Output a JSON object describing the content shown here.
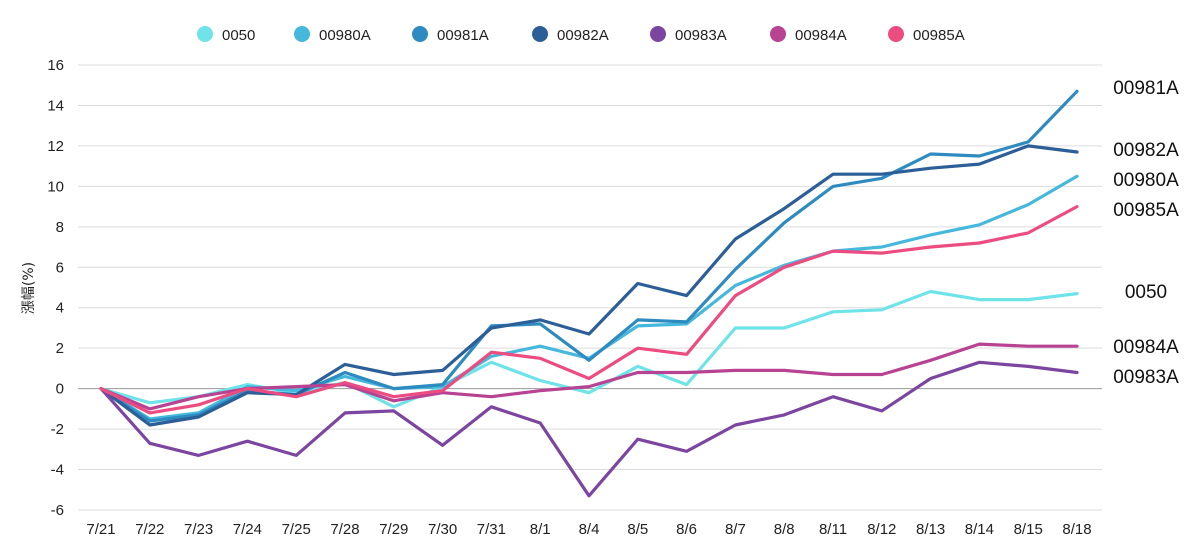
{
  "chart_data": {
    "type": "line",
    "title": "",
    "xlabel": "",
    "ylabel": "漲幅(%)",
    "ylim": [
      -6,
      16
    ],
    "yticks": [
      -6,
      -4,
      -2,
      0,
      2,
      4,
      6,
      8,
      10,
      12,
      14,
      16
    ],
    "grid": true,
    "legend_position": "top",
    "categories": [
      "7/21",
      "7/22",
      "7/23",
      "7/24",
      "7/25",
      "7/28",
      "7/29",
      "7/30",
      "7/31",
      "8/1",
      "8/4",
      "8/5",
      "8/6",
      "8/7",
      "8/8",
      "8/11",
      "8/12",
      "8/13",
      "8/14",
      "8/15",
      "8/18"
    ],
    "series": [
      {
        "name": "0050",
        "color": "#6ee3e8",
        "end_label": "0050",
        "values": [
          0,
          -0.7,
          -0.4,
          0.2,
          -0.2,
          0.3,
          -0.9,
          0.1,
          1.3,
          0.4,
          -0.2,
          1.1,
          0.2,
          3.0,
          3.0,
          3.8,
          3.9,
          4.8,
          4.4,
          4.4,
          4.7
        ]
      },
      {
        "name": "00980A",
        "color": "#45b8dc",
        "end_label": "00980A",
        "values": [
          0,
          -1.5,
          -1.2,
          0.1,
          -0.1,
          0.6,
          0.0,
          0.1,
          1.6,
          2.1,
          1.5,
          3.1,
          3.2,
          5.1,
          6.1,
          6.8,
          7.0,
          7.6,
          8.1,
          9.1,
          10.5
        ]
      },
      {
        "name": "00981A",
        "color": "#2e8bc0",
        "end_label": "00981A",
        "values": [
          0,
          -1.6,
          -1.3,
          -0.1,
          -0.3,
          0.8,
          0.0,
          0.2,
          3.1,
          3.2,
          1.4,
          3.4,
          3.3,
          5.9,
          8.2,
          10.0,
          10.4,
          11.6,
          11.5,
          12.2,
          14.7
        ]
      },
      {
        "name": "00982A",
        "color": "#2c5e98",
        "end_label": "00982A",
        "values": [
          0,
          -1.8,
          -1.4,
          -0.2,
          -0.3,
          1.2,
          0.7,
          0.9,
          3.0,
          3.4,
          2.7,
          5.2,
          4.6,
          7.4,
          8.9,
          10.6,
          10.6,
          10.9,
          11.1,
          12.0,
          11.7
        ]
      },
      {
        "name": "00983A",
        "color": "#7b45a0",
        "end_label": "00983A",
        "values": [
          0,
          -2.7,
          -3.3,
          -2.6,
          -3.3,
          -1.2,
          -1.1,
          -2.8,
          -0.9,
          -1.7,
          -5.3,
          -2.5,
          -3.1,
          -1.8,
          -1.3,
          -0.4,
          -1.1,
          0.5,
          1.3,
          1.1,
          0.8
        ]
      },
      {
        "name": "00984A",
        "color": "#b84393",
        "end_label": "00984A",
        "values": [
          0,
          -1.0,
          -0.4,
          0.0,
          0.1,
          0.2,
          -0.6,
          -0.2,
          -0.4,
          -0.1,
          0.1,
          0.8,
          0.8,
          0.9,
          0.9,
          0.7,
          0.7,
          1.4,
          2.2,
          2.1,
          2.1
        ]
      },
      {
        "name": "00985A",
        "color": "#ec4c80",
        "end_label": "00985A",
        "values": [
          0,
          -1.2,
          -0.8,
          0.0,
          -0.4,
          0.3,
          -0.4,
          -0.1,
          1.8,
          1.5,
          0.5,
          2.0,
          1.7,
          4.6,
          6.0,
          6.8,
          6.7,
          7.0,
          7.2,
          7.7,
          9.0
        ]
      }
    ]
  }
}
